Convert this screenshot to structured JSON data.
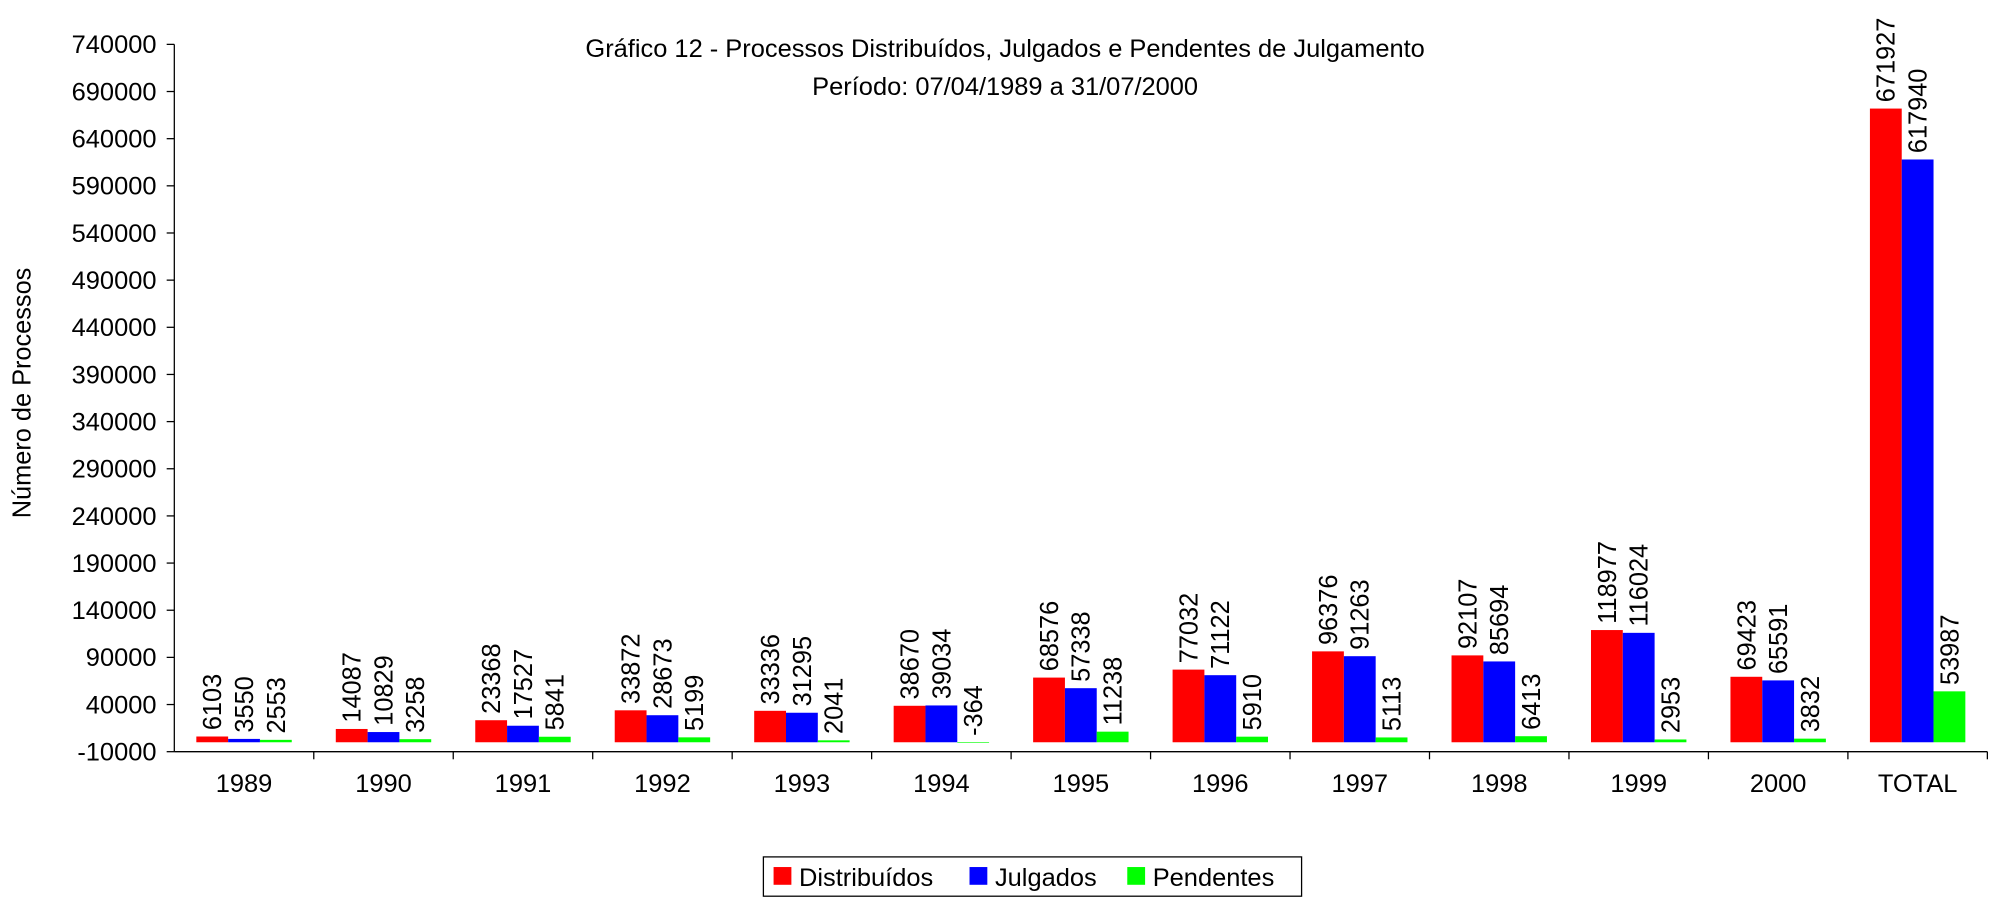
{
  "chart_data": {
    "type": "bar",
    "title": "Gráfico 12 - Processos Distribuídos, Julgados e Pendentes de Julgamento",
    "subtitle": "Período: 07/04/1989 a 31/07/2000",
    "ylabel": "Número de Processos",
    "categories": [
      "1989",
      "1990",
      "1991",
      "1992",
      "1993",
      "1994",
      "1995",
      "1996",
      "1997",
      "1998",
      "1999",
      "2000",
      "TOTAL"
    ],
    "series": [
      {
        "name": "Distribuídos",
        "color": "#ff0000",
        "values": [
          6103,
          14087,
          23368,
          33872,
          33336,
          38670,
          68576,
          77032,
          96376,
          92107,
          118977,
          69423,
          671927
        ]
      },
      {
        "name": "Julgados",
        "color": "#0000ff",
        "values": [
          3550,
          10829,
          17527,
          28673,
          31295,
          39034,
          57338,
          71122,
          91263,
          85694,
          116024,
          65591,
          617940
        ]
      },
      {
        "name": "Pendentes",
        "color": "#00ff00",
        "values": [
          2553,
          3258,
          5841,
          5199,
          2041,
          -364,
          11238,
          5910,
          5113,
          6413,
          2953,
          3832,
          53987
        ]
      }
    ],
    "ylim": [
      -10000,
      740000
    ],
    "yticks": [
      -10000,
      40000,
      90000,
      140000,
      190000,
      240000,
      290000,
      340000,
      390000,
      440000,
      490000,
      540000,
      590000,
      640000,
      690000,
      740000
    ],
    "legend": "bottom"
  }
}
